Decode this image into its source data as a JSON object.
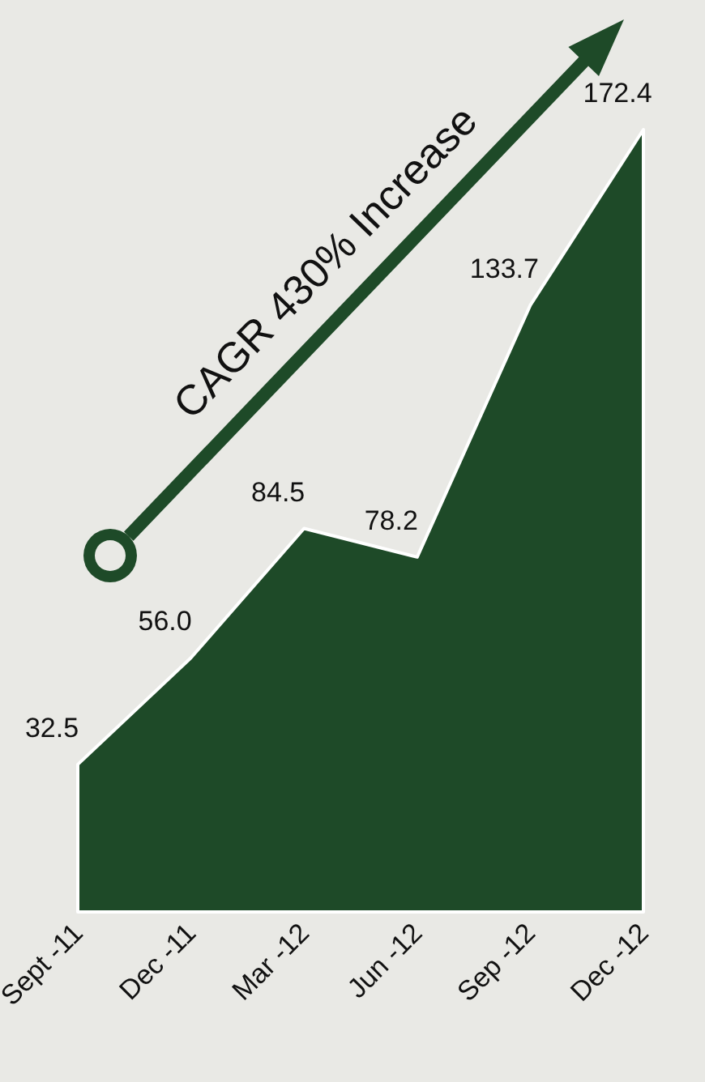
{
  "chart_data": {
    "type": "area",
    "categories": [
      "Sept -11",
      "Dec -11",
      "Mar -12",
      "Jun -12",
      "Sep -12",
      "Dec -12"
    ],
    "values": [
      32.5,
      56.0,
      84.5,
      78.2,
      133.7,
      172.4
    ],
    "value_labels": [
      "32.5",
      "56.0",
      "84.5",
      "78.2",
      "133.7",
      "172.4"
    ],
    "color": "#1e4a28",
    "annotations": [
      "CAGR 430% Increase"
    ]
  }
}
